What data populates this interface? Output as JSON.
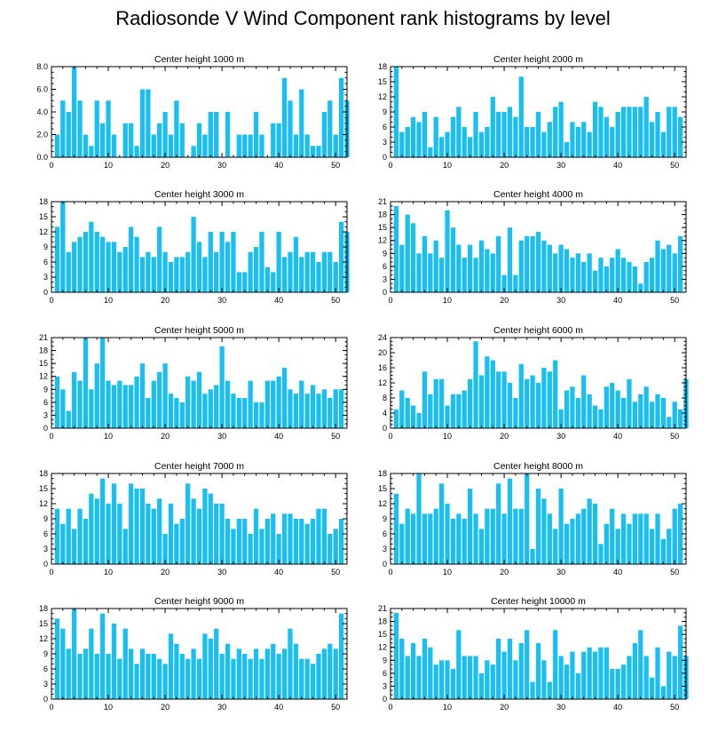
{
  "figure_title": "Radiosonde V Wind Component rank histograms by level",
  "colors": {
    "bar": "#18bff0",
    "axis": "#000000",
    "background": "#ffffff"
  },
  "chart_data": [
    {
      "type": "bar",
      "title": "Center height 1000 m",
      "ylim": [
        0,
        8
      ],
      "yticks": [
        0,
        2,
        4,
        6,
        8
      ],
      "ytick_labels": [
        "0.0",
        "2.0",
        "4.0",
        "6.0",
        "8.0"
      ],
      "xlim": [
        0,
        52
      ],
      "xticks": [
        0,
        10,
        20,
        30,
        40,
        50
      ],
      "xtick_labels": [
        "0",
        "10",
        "20",
        "30",
        "40",
        "50"
      ],
      "values": [
        2,
        5,
        4,
        8,
        5,
        2,
        1,
        5,
        3,
        5,
        2,
        0,
        3,
        3,
        1,
        6,
        6,
        2,
        3,
        4,
        2,
        5,
        3,
        0,
        1,
        3,
        2,
        4,
        4,
        0,
        4,
        0,
        2,
        2,
        2,
        4,
        2,
        0,
        3,
        3,
        7,
        5,
        2,
        6,
        2,
        1,
        1,
        4,
        5,
        2,
        7,
        5
      ]
    },
    {
      "type": "bar",
      "title": "Center height 2000 m",
      "ylim": [
        0,
        18
      ],
      "yticks": [
        0,
        3,
        6,
        9,
        12,
        15,
        18
      ],
      "ytick_labels": [
        "0",
        "3",
        "6",
        "9",
        "12",
        "15",
        "18"
      ],
      "xlim": [
        0,
        52
      ],
      "xticks": [
        0,
        10,
        20,
        30,
        40,
        50
      ],
      "xtick_labels": [
        "0",
        "10",
        "20",
        "30",
        "40",
        "50"
      ],
      "values": [
        18,
        5,
        6,
        8,
        7,
        9,
        2,
        8,
        4,
        5,
        8,
        10,
        6,
        4,
        9,
        5,
        6,
        12,
        9,
        9,
        10,
        8,
        16,
        6,
        6,
        9,
        5,
        7,
        10,
        11,
        3,
        7,
        6,
        7,
        5,
        11,
        10,
        8,
        6,
        9,
        10,
        10,
        10,
        10,
        12,
        7,
        9,
        5,
        10,
        10,
        8
      ]
    },
    {
      "type": "bar",
      "title": "Center height 3000 m",
      "ylim": [
        0,
        18
      ],
      "yticks": [
        0,
        3,
        6,
        9,
        12,
        15,
        18
      ],
      "ytick_labels": [
        "0",
        "3",
        "6",
        "9",
        "12",
        "15",
        "18"
      ],
      "xlim": [
        0,
        52
      ],
      "xticks": [
        0,
        10,
        20,
        30,
        40,
        50
      ],
      "xtick_labels": [
        "0",
        "10",
        "20",
        "30",
        "40",
        "50"
      ],
      "values": [
        13,
        18,
        8,
        10,
        11,
        12,
        14,
        12,
        11,
        10,
        10,
        8,
        9,
        13,
        11,
        7,
        8,
        7,
        13,
        8,
        6,
        7,
        7,
        8,
        15,
        10,
        7,
        12,
        8,
        12,
        10,
        12,
        4,
        4,
        8,
        9,
        12,
        5,
        4,
        12,
        7,
        8,
        11,
        7,
        8,
        8,
        6,
        8,
        8,
        6,
        14,
        12
      ]
    },
    {
      "type": "bar",
      "title": "Center height 4000 m",
      "ylim": [
        0,
        21
      ],
      "yticks": [
        0,
        3,
        6,
        9,
        12,
        15,
        18,
        21
      ],
      "ytick_labels": [
        "0",
        "3",
        "6",
        "9",
        "12",
        "15",
        "18",
        "21"
      ],
      "xlim": [
        0,
        52
      ],
      "xticks": [
        0,
        10,
        20,
        30,
        40,
        50
      ],
      "xtick_labels": [
        "0",
        "10",
        "20",
        "30",
        "40",
        "50"
      ],
      "values": [
        20,
        11,
        18,
        16,
        9,
        13,
        9,
        12,
        8,
        19,
        15,
        11,
        8,
        11,
        8,
        12,
        10,
        9,
        13,
        4,
        15,
        4,
        12,
        13,
        13,
        14,
        12,
        11,
        9,
        11,
        10,
        8,
        9,
        7,
        9,
        5,
        8,
        6,
        8,
        10,
        8,
        7,
        6,
        2,
        7,
        8,
        12,
        10,
        11,
        9,
        13
      ]
    },
    {
      "type": "bar",
      "title": "Center height 5000 m",
      "ylim": [
        0,
        21
      ],
      "yticks": [
        0,
        3,
        6,
        9,
        12,
        15,
        18,
        21
      ],
      "ytick_labels": [
        "0",
        "3",
        "6",
        "9",
        "12",
        "15",
        "18",
        "21"
      ],
      "xlim": [
        0,
        52
      ],
      "xticks": [
        0,
        10,
        20,
        30,
        40,
        50
      ],
      "xtick_labels": [
        "0",
        "10",
        "20",
        "30",
        "40",
        "50"
      ],
      "values": [
        12,
        9,
        4,
        13,
        11,
        21,
        9,
        15,
        21,
        11,
        10,
        11,
        10,
        10,
        12,
        15,
        7,
        11,
        13,
        15,
        8,
        7,
        6,
        12,
        11,
        13,
        8,
        9,
        10,
        19,
        11,
        8,
        7,
        7,
        11,
        6,
        6,
        11,
        11,
        12,
        14,
        9,
        8,
        11,
        8,
        10,
        8,
        9,
        7,
        9,
        9
      ]
    },
    {
      "type": "bar",
      "title": "Center height 6000 m",
      "ylim": [
        0,
        24
      ],
      "yticks": [
        0,
        4,
        8,
        12,
        16,
        20,
        24
      ],
      "ytick_labels": [
        "0",
        "4",
        "8",
        "12",
        "16",
        "20",
        "24"
      ],
      "xlim": [
        0,
        52
      ],
      "xticks": [
        0,
        10,
        20,
        30,
        40,
        50
      ],
      "xtick_labels": [
        "0",
        "10",
        "20",
        "30",
        "40",
        "50"
      ],
      "values": [
        5,
        10,
        8,
        6,
        4,
        15,
        9,
        13,
        13,
        6,
        9,
        9,
        10,
        13,
        23,
        14,
        19,
        18,
        15,
        15,
        12,
        8,
        17,
        13,
        14,
        12,
        16,
        15,
        18,
        5,
        10,
        11,
        8,
        14,
        9,
        6,
        5,
        11,
        12,
        10,
        8,
        13,
        7,
        9,
        11,
        7,
        9,
        8,
        3,
        7,
        5,
        13
      ]
    },
    {
      "type": "bar",
      "title": "Center height 7000 m",
      "ylim": [
        0,
        18
      ],
      "yticks": [
        0,
        3,
        6,
        9,
        12,
        15,
        18
      ],
      "ytick_labels": [
        "0",
        "3",
        "6",
        "9",
        "12",
        "15",
        "18"
      ],
      "xlim": [
        0,
        52
      ],
      "xticks": [
        0,
        10,
        20,
        30,
        40,
        50
      ],
      "xtick_labels": [
        "0",
        "10",
        "20",
        "30",
        "40",
        "50"
      ],
      "values": [
        11,
        8,
        11,
        7,
        11,
        9,
        14,
        13,
        17,
        12,
        16,
        12,
        7,
        16,
        15,
        15,
        12,
        11,
        13,
        6,
        12,
        8,
        9,
        16,
        13,
        11,
        15,
        14,
        12,
        12,
        9,
        7,
        9,
        9,
        6,
        11,
        7,
        9,
        10,
        6,
        10,
        10,
        9,
        9,
        8,
        9,
        11,
        11,
        6,
        7,
        9
      ]
    },
    {
      "type": "bar",
      "title": "Center height 8000 m",
      "ylim": [
        0,
        18
      ],
      "yticks": [
        0,
        3,
        6,
        9,
        12,
        15,
        18
      ],
      "ytick_labels": [
        "0",
        "3",
        "6",
        "9",
        "12",
        "15",
        "18"
      ],
      "xlim": [
        0,
        52
      ],
      "xticks": [
        0,
        10,
        20,
        30,
        40,
        50
      ],
      "xtick_labels": [
        "0",
        "10",
        "20",
        "30",
        "40",
        "50"
      ],
      "values": [
        14,
        8,
        11,
        10,
        18,
        10,
        10,
        11,
        16,
        12,
        9,
        10,
        9,
        15,
        10,
        7,
        11,
        11,
        16,
        10,
        17,
        11,
        11,
        18,
        3,
        15,
        13,
        10,
        7,
        15,
        8,
        9,
        10,
        11,
        13,
        12,
        4,
        8,
        11,
        7,
        10,
        8,
        10,
        10,
        10,
        7,
        10,
        5,
        7,
        11,
        12
      ]
    },
    {
      "type": "bar",
      "title": "Center height 9000 m",
      "ylim": [
        0,
        18
      ],
      "yticks": [
        0,
        3,
        6,
        9,
        12,
        15,
        18
      ],
      "ytick_labels": [
        "0",
        "3",
        "6",
        "9",
        "12",
        "15",
        "18"
      ],
      "xlim": [
        0,
        52
      ],
      "xticks": [
        0,
        10,
        20,
        30,
        40,
        50
      ],
      "xtick_labels": [
        "0",
        "10",
        "20",
        "30",
        "40",
        "50"
      ],
      "values": [
        16,
        14,
        10,
        18,
        9,
        10,
        14,
        9,
        17,
        9,
        15,
        8,
        14,
        10,
        7,
        10,
        9,
        9,
        8,
        7,
        13,
        11,
        9,
        8,
        10,
        8,
        13,
        12,
        14,
        9,
        11,
        8,
        10,
        9,
        8,
        10,
        8,
        10,
        11,
        9,
        10,
        14,
        11,
        8,
        8,
        7,
        9,
        10,
        11,
        10,
        17
      ]
    },
    {
      "type": "bar",
      "title": "Center height 10000 m",
      "ylim": [
        0,
        21
      ],
      "yticks": [
        0,
        3,
        6,
        9,
        12,
        15,
        18,
        21
      ],
      "ytick_labels": [
        "0",
        "3",
        "6",
        "9",
        "12",
        "15",
        "18",
        "21"
      ],
      "xlim": [
        0,
        52
      ],
      "xticks": [
        0,
        10,
        20,
        30,
        40,
        50
      ],
      "xtick_labels": [
        "0",
        "10",
        "20",
        "30",
        "40",
        "50"
      ],
      "values": [
        20,
        14,
        10,
        13,
        10,
        14,
        12,
        8,
        9,
        9,
        7,
        16,
        10,
        10,
        10,
        6,
        9,
        8,
        14,
        11,
        14,
        9,
        13,
        16,
        4,
        13,
        9,
        4,
        16,
        10,
        8,
        11,
        6,
        11,
        12,
        11,
        12,
        12,
        7,
        7,
        8,
        10,
        13,
        16,
        10,
        5,
        12,
        3,
        11,
        10,
        17,
        10
      ]
    }
  ]
}
